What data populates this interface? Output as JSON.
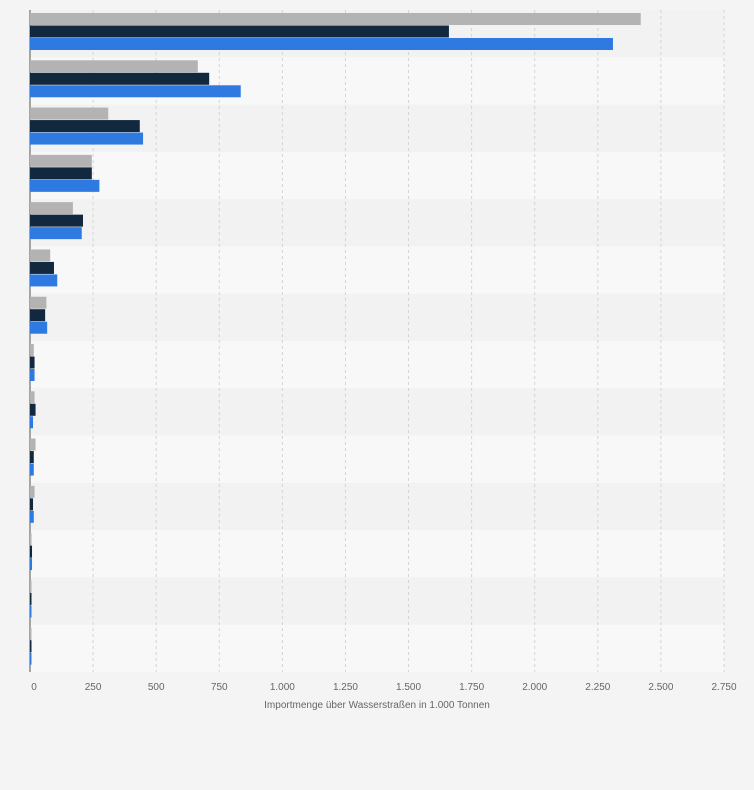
{
  "chart_data": {
    "type": "bar",
    "orientation": "horizontal",
    "categories": [
      "",
      "",
      "",
      "",
      "",
      "",
      "",
      "",
      "",
      "",
      "",
      "",
      "",
      ""
    ],
    "series": [
      {
        "values": [
          2420,
          665,
          310,
          245,
          170,
          80,
          65,
          15,
          18,
          22,
          18,
          3,
          2,
          2
        ],
        "color": "#b3b3b3"
      },
      {
        "values": [
          1660,
          710,
          435,
          245,
          210,
          95,
          60,
          18,
          22,
          15,
          12,
          8,
          4,
          3
        ],
        "color": "#12283f"
      },
      {
        "values": [
          2310,
          835,
          448,
          275,
          205,
          108,
          68,
          18,
          12,
          15,
          15,
          8,
          4,
          4
        ],
        "color": "#2f7ae0"
      }
    ],
    "xlim": [
      0,
      2750
    ],
    "x_ticks": [
      "0",
      "250",
      "500",
      "750",
      "1.000",
      "1.250",
      "1.500",
      "1.750",
      "2.000",
      "2.250",
      "2.500",
      "2.750"
    ],
    "xlabel": "Importmenge über Wasserstraßen in 1.000 Tonnen",
    "grid": true,
    "legend": "none"
  }
}
